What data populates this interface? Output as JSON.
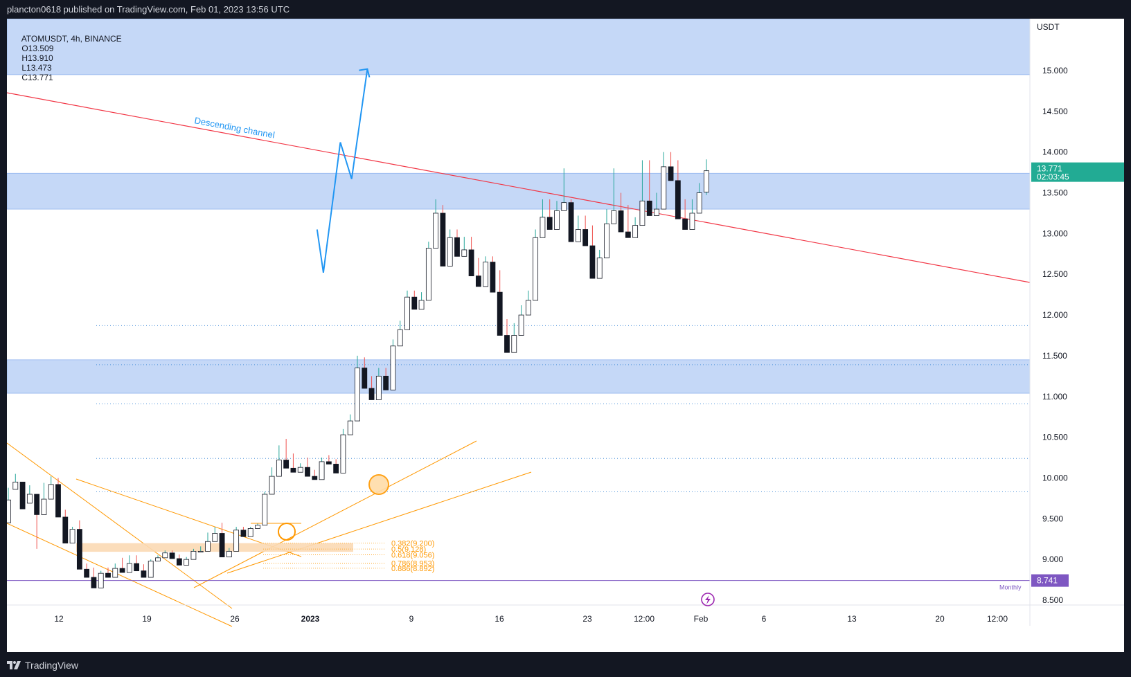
{
  "header": {
    "publish_text": "plancton0618 published on TradingView.com, Feb 01, 2023 13:56 UTC"
  },
  "footer": {
    "brand": "TradingView"
  },
  "symbol_info": {
    "symbol": "ATOMUSDT, 4h, BINANCE",
    "open": "O13.509",
    "high": "H13.910",
    "low": "L13.473",
    "close": "C13.771"
  },
  "colors": {
    "background": "#ffffff",
    "frame": "#131722",
    "up_candle": "#26a69a",
    "down_candle": "#ef5350",
    "zone_fill": "#c5d8f7",
    "resistance_line": "#f23645",
    "projection": "#2196f3",
    "channel": "#ff9800",
    "monthly_line": "#7e57c2",
    "price_badge": "#22ab94"
  },
  "chart_data": {
    "type": "candlestick",
    "currency": "USDT",
    "ylim": [
      8.35,
      15.7
    ],
    "y_ticks": [
      "15.000",
      "14.500",
      "14.000",
      "13.500",
      "13.000",
      "12.500",
      "12.000",
      "11.500",
      "11.000",
      "10.500",
      "10.000",
      "9.500",
      "9.000",
      "8.500"
    ],
    "x_ticks": [
      "12",
      "19",
      "26",
      "2023",
      "9",
      "16",
      "23",
      "12:00",
      "Feb",
      "6",
      "13",
      "20",
      "12:00"
    ],
    "last_price": {
      "value": "13.771",
      "countdown": "02:03:45"
    },
    "monthly_level": {
      "value": "8.741",
      "label": "Monthly"
    },
    "annotation": "Descending channel",
    "fib_levels": [
      {
        "ratio": "0.382",
        "price": "9.200",
        "label": "0.382(9.200)"
      },
      {
        "ratio": "0.5",
        "price": "9.128",
        "label": "0.5(9.128)"
      },
      {
        "ratio": "0.618",
        "price": "9.056",
        "label": "0.618(9.056)"
      },
      {
        "ratio": "0.786",
        "price": "8.953",
        "label": "0.786(8.953)"
      },
      {
        "ratio": "0.886",
        "price": "8.892",
        "label": "0.886(8.892)"
      }
    ],
    "zones": [
      {
        "from": 14.95,
        "to": 15.7
      },
      {
        "from": 13.3,
        "to": 13.74
      },
      {
        "from": 11.04,
        "to": 11.45
      }
    ],
    "dotted_levels": [
      11.87,
      11.39,
      10.91,
      10.24,
      9.83
    ],
    "projection_path": [
      {
        "day": 20.55,
        "price": 13.05
      },
      {
        "day": 21.05,
        "price": 12.52
      },
      {
        "day": 22.4,
        "price": 14.12
      },
      {
        "day": 23.3,
        "price": 13.67
      },
      {
        "day": 24.55,
        "price": 15.02
      }
    ],
    "candles": [
      [
        9.45,
        9.86,
        9.73,
        9.88
      ],
      [
        9.86,
        10.05,
        9.95,
        10.05
      ],
      [
        9.95,
        9.87,
        9.62,
        9.69
      ],
      [
        9.69,
        9.88,
        9.8,
        9.91
      ],
      [
        9.8,
        9.13,
        9.55,
        9.73
      ],
      [
        9.55,
        9.88,
        9.74,
        9.94
      ],
      [
        9.74,
        10.02,
        9.92,
        10.02
      ],
      [
        9.92,
        10.0,
        9.52,
        9.61
      ],
      [
        9.52,
        9.61,
        9.2,
        9.25
      ],
      [
        9.2,
        9.25,
        9.37,
        9.4
      ],
      [
        9.37,
        9.48,
        8.88,
        8.95
      ],
      [
        8.88,
        8.95,
        8.78,
        8.88
      ],
      [
        8.78,
        8.9,
        8.65,
        8.72
      ],
      [
        8.65,
        8.72,
        8.83,
        8.86
      ],
      [
        8.83,
        8.9,
        8.78,
        8.9
      ],
      [
        8.78,
        8.94,
        8.89,
        8.95
      ],
      [
        8.89,
        8.99,
        8.84,
        9.02
      ],
      [
        8.84,
        9.02,
        8.95,
        9.05
      ],
      [
        8.95,
        9.05,
        8.86,
        8.89
      ],
      [
        8.86,
        8.94,
        8.78,
        8.79
      ],
      [
        8.78,
        8.79,
        8.98,
        9.0
      ],
      [
        8.98,
        9.02,
        9.02,
        9.05
      ],
      [
        9.02,
        9.05,
        9.08,
        9.11
      ],
      [
        9.08,
        9.11,
        9.01,
        9.04
      ],
      [
        9.01,
        9.06,
        8.93,
        8.96
      ],
      [
        8.93,
        8.96,
        9.0,
        9.03
      ],
      [
        9.0,
        9.03,
        9.1,
        9.13
      ],
      [
        9.1,
        9.13,
        9.1,
        9.16
      ],
      [
        9.1,
        9.2,
        9.22,
        9.33
      ],
      [
        9.22,
        9.38,
        9.32,
        9.4
      ],
      [
        9.32,
        9.45,
        9.03,
        9.08
      ],
      [
        9.03,
        9.08,
        9.1,
        9.14
      ],
      [
        9.1,
        9.17,
        9.36,
        9.4
      ],
      [
        9.36,
        9.4,
        9.28,
        9.36
      ],
      [
        9.28,
        9.36,
        9.38,
        9.4
      ],
      [
        9.38,
        9.4,
        9.42,
        9.44
      ],
      [
        9.42,
        9.55,
        9.8,
        9.83
      ],
      [
        9.8,
        9.85,
        10.02,
        10.13
      ],
      [
        10.02,
        10.3,
        10.22,
        10.4
      ],
      [
        10.22,
        10.35,
        10.12,
        10.48
      ],
      [
        10.12,
        10.3,
        10.07,
        10.18
      ],
      [
        10.07,
        10.12,
        10.13,
        10.18
      ],
      [
        10.13,
        10.25,
        10.02,
        10.15
      ],
      [
        10.02,
        10.1,
        9.98,
        10.03
      ],
      [
        9.98,
        10.12,
        10.2,
        10.25
      ],
      [
        10.2,
        10.28,
        10.17,
        10.23
      ],
      [
        10.17,
        10.23,
        10.06,
        10.2
      ],
      [
        10.06,
        10.2,
        10.53,
        10.6
      ],
      [
        10.53,
        10.6,
        10.7,
        10.78
      ],
      [
        10.7,
        11.0,
        11.35,
        11.5
      ],
      [
        11.35,
        11.48,
        11.1,
        11.4
      ],
      [
        11.1,
        11.25,
        10.96,
        11.15
      ],
      [
        10.96,
        11.18,
        11.25,
        11.35
      ],
      [
        11.25,
        11.35,
        11.08,
        11.3
      ],
      [
        11.08,
        11.3,
        11.62,
        11.7
      ],
      [
        11.62,
        11.82,
        11.82,
        11.93
      ],
      [
        11.82,
        12.05,
        12.22,
        12.3
      ],
      [
        12.22,
        12.3,
        12.07,
        12.2
      ],
      [
        12.07,
        12.2,
        12.18,
        12.28
      ],
      [
        12.18,
        12.5,
        12.82,
        12.9
      ],
      [
        12.82,
        13.3,
        13.25,
        13.42
      ],
      [
        13.25,
        13.35,
        12.6,
        12.85
      ],
      [
        12.6,
        12.85,
        12.95,
        13.05
      ],
      [
        12.95,
        13.05,
        12.72,
        12.95
      ],
      [
        12.72,
        12.95,
        12.8,
        12.96
      ],
      [
        12.8,
        12.96,
        12.48,
        12.7
      ],
      [
        12.48,
        12.7,
        12.35,
        12.5
      ],
      [
        12.35,
        12.5,
        12.65,
        12.72
      ],
      [
        12.65,
        12.72,
        12.28,
        12.55
      ],
      [
        12.28,
        12.55,
        11.75,
        11.95
      ],
      [
        11.75,
        11.95,
        11.54,
        11.7
      ],
      [
        11.54,
        11.7,
        11.75,
        11.9
      ],
      [
        11.75,
        11.9,
        12.0,
        12.12
      ],
      [
        12.0,
        12.12,
        12.18,
        12.3
      ],
      [
        12.18,
        12.5,
        12.95,
        13.05
      ],
      [
        12.95,
        13.4,
        13.2,
        13.42
      ],
      [
        13.2,
        13.42,
        13.05,
        13.25
      ],
      [
        13.05,
        13.25,
        13.28,
        13.4
      ],
      [
        13.28,
        13.45,
        13.38,
        13.8
      ],
      [
        13.38,
        13.42,
        12.9,
        13.1
      ],
      [
        12.9,
        13.1,
        13.05,
        13.22
      ],
      [
        13.05,
        13.22,
        12.85,
        13.1
      ],
      [
        12.85,
        13.1,
        12.45,
        12.68
      ],
      [
        12.45,
        12.68,
        12.7,
        12.8
      ],
      [
        12.7,
        12.8,
        13.12,
        13.3
      ],
      [
        13.12,
        13.6,
        13.28,
        13.8
      ],
      [
        13.28,
        13.5,
        13.02,
        13.35
      ],
      [
        13.02,
        13.35,
        12.95,
        13.1
      ],
      [
        12.95,
        13.1,
        13.1,
        13.2
      ],
      [
        13.1,
        13.25,
        13.4,
        13.9
      ],
      [
        13.4,
        13.9,
        13.22,
        13.45
      ],
      [
        13.22,
        13.45,
        13.3,
        13.5
      ],
      [
        13.3,
        13.55,
        13.82,
        14.0
      ],
      [
        13.82,
        14.0,
        13.65,
        13.9
      ],
      [
        13.65,
        13.9,
        13.18,
        13.42
      ],
      [
        13.18,
        13.42,
        13.05,
        13.25
      ],
      [
        13.05,
        13.25,
        13.25,
        13.42
      ],
      [
        13.25,
        13.42,
        13.5,
        13.62
      ],
      [
        13.509,
        13.91,
        13.771,
        13.473
      ]
    ]
  }
}
